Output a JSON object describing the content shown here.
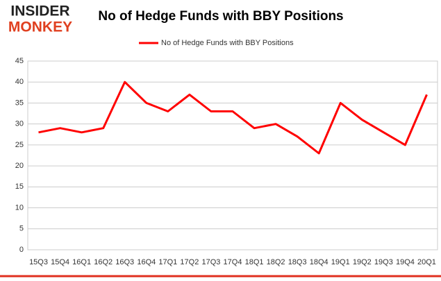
{
  "logo": {
    "top": "INSIDER",
    "bottom": "MONKEY"
  },
  "chart_data": {
    "type": "line",
    "title": "No of Hedge Funds with BBY Positions",
    "categories": [
      "15Q3",
      "15Q4",
      "16Q1",
      "16Q2",
      "16Q3",
      "16Q4",
      "17Q1",
      "17Q2",
      "17Q3",
      "17Q4",
      "18Q1",
      "18Q2",
      "18Q3",
      "18Q4",
      "19Q1",
      "19Q2",
      "19Q3",
      "19Q4",
      "20Q1"
    ],
    "series": [
      {
        "name": "No of Hedge Funds with BBY Positions",
        "color": "#ff0000",
        "values": [
          28,
          29,
          28,
          29,
          40,
          35,
          33,
          37,
          33,
          33,
          29,
          30,
          27,
          23,
          35,
          31,
          28,
          25,
          37
        ]
      }
    ],
    "ylim": [
      0,
      45
    ],
    "yticks": [
      0,
      5,
      10,
      15,
      20,
      25,
      30,
      35,
      40,
      45
    ],
    "grid": true,
    "legend": "top"
  }
}
